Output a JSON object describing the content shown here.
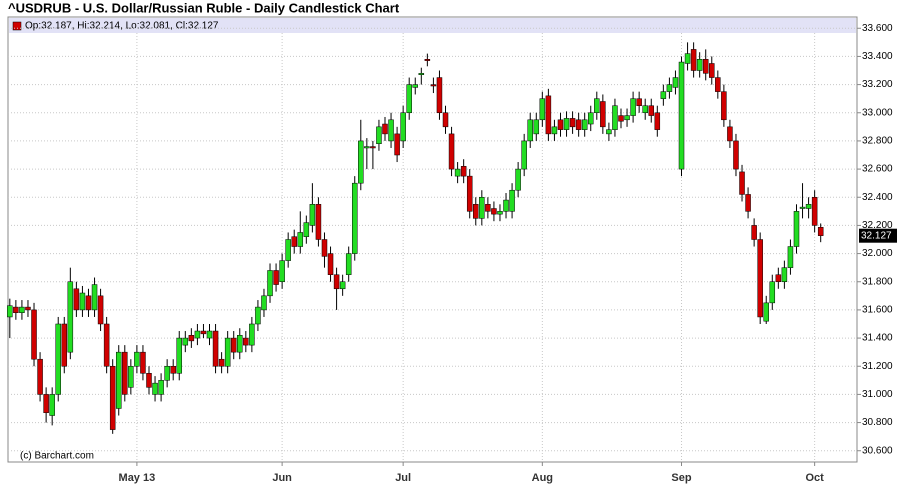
{
  "chart_data": {
    "type": "candlestick",
    "title": "^USDRUB - U.S. Dollar/Russian Ruble - Daily Candlestick Chart",
    "info": "Op:32.187, Hi:32.214, Lo:32.081, Cl:32.127",
    "credit": "(c) Barchart.com",
    "up_color": "#22dd22",
    "down_color": "#d00000",
    "grid": true,
    "xlim": [
      -0.3,
      140
    ],
    "xticks": [
      {
        "value": 21,
        "label": "May 13"
      },
      {
        "value": 45,
        "label": "Jun"
      },
      {
        "value": 65,
        "label": "Jul"
      },
      {
        "value": 88,
        "label": "Aug"
      },
      {
        "value": 111,
        "label": "Sep"
      },
      {
        "value": 133,
        "label": "Oct"
      }
    ],
    "ylim": [
      30.52,
      33.68
    ],
    "yticks": [
      {
        "value": 30.6,
        "label": "30.600"
      },
      {
        "value": 30.8,
        "label": "30.800"
      },
      {
        "value": 31.0,
        "label": "31.000"
      },
      {
        "value": 31.2,
        "label": "31.200"
      },
      {
        "value": 31.4,
        "label": "31.400"
      },
      {
        "value": 31.6,
        "label": "31.600"
      },
      {
        "value": 31.8,
        "label": "31.800"
      },
      {
        "value": 32.0,
        "label": "32.000"
      },
      {
        "value": 32.2,
        "label": "32.200"
      },
      {
        "value": 32.4,
        "label": "32.400"
      },
      {
        "value": 32.6,
        "label": "32.600"
      },
      {
        "value": 32.8,
        "label": "32.800"
      },
      {
        "value": 33.0,
        "label": "33.000"
      },
      {
        "value": 33.2,
        "label": "33.200"
      },
      {
        "value": 33.4,
        "label": "33.400"
      },
      {
        "value": 33.6,
        "label": "33.600"
      }
    ],
    "open": [
      31.55,
      31.62,
      31.58,
      31.62,
      31.6,
      31.25,
      31.0,
      30.85,
      31.0,
      31.5,
      31.3,
      31.75,
      31.6,
      31.7,
      31.6,
      31.7,
      31.5,
      31.2,
      30.9,
      31.3,
      31.05,
      31.2,
      31.3,
      31.15,
      31.0,
      31.0,
      31.1,
      31.2,
      31.15,
      31.35,
      31.42,
      31.4,
      31.45,
      31.4,
      31.45,
      31.25,
      31.2,
      31.4,
      31.3,
      31.4,
      31.35,
      31.5,
      31.6,
      31.7,
      31.88,
      31.8,
      31.95,
      32.12,
      32.05,
      32.12,
      32.2,
      32.35,
      32.1,
      32.0,
      31.85,
      31.75,
      31.85,
      32.0,
      32.5,
      32.75,
      32.76,
      32.78,
      32.92,
      32.8,
      32.85,
      32.8,
      33.0,
      33.18,
      33.27,
      33.38,
      33.2,
      33.25,
      33.0,
      32.85,
      32.55,
      32.62,
      32.55,
      32.35,
      32.25,
      32.35,
      32.32,
      32.28,
      32.3,
      32.3,
      32.45,
      32.6,
      32.8,
      32.85,
      32.95,
      33.12,
      32.85,
      32.95,
      32.88,
      32.96,
      32.95,
      32.88,
      32.92,
      33.0,
      33.08,
      32.85,
      32.88,
      32.98,
      32.95,
      32.98,
      33.1,
      33.0,
      33.05,
      33.0,
      33.1,
      33.15,
      33.18,
      32.6,
      33.35,
      33.45,
      33.3,
      33.38,
      33.35,
      33.25,
      33.15,
      32.9,
      32.8,
      32.58,
      32.42,
      32.2,
      32.1,
      31.52,
      31.65,
      31.85,
      31.8,
      31.9,
      32.05,
      32.32,
      32.32,
      32.4,
      32.187
    ],
    "high": [
      31.68,
      31.67,
      31.67,
      31.67,
      31.65,
      31.3,
      31.05,
      31.05,
      31.55,
      31.55,
      31.9,
      31.8,
      31.77,
      31.75,
      31.83,
      31.75,
      31.55,
      31.25,
      31.35,
      31.35,
      31.25,
      31.35,
      31.35,
      31.2,
      31.13,
      31.15,
      31.25,
      31.25,
      31.45,
      31.45,
      31.47,
      31.5,
      31.5,
      31.5,
      31.5,
      31.3,
      31.45,
      31.45,
      31.47,
      31.45,
      31.55,
      31.67,
      31.75,
      31.93,
      31.93,
      32.0,
      32.15,
      32.17,
      32.3,
      32.27,
      32.5,
      32.4,
      32.15,
      32.05,
      31.9,
      31.85,
      32.05,
      32.55,
      32.95,
      32.82,
      32.8,
      32.95,
      32.97,
      33.0,
      32.9,
      33.05,
      33.25,
      33.25,
      33.32,
      33.42,
      33.25,
      33.3,
      33.05,
      32.9,
      32.65,
      32.67,
      32.6,
      32.4,
      32.45,
      32.4,
      32.37,
      32.35,
      32.43,
      32.5,
      32.65,
      32.85,
      33.0,
      33.0,
      33.15,
      33.17,
      32.95,
      33.0,
      33.01,
      33.01,
      33.0,
      33.0,
      33.05,
      33.15,
      33.13,
      32.93,
      33.1,
      33.03,
      33.03,
      33.15,
      33.15,
      33.1,
      33.1,
      33.05,
      33.2,
      33.25,
      33.3,
      33.4,
      33.5,
      33.5,
      33.43,
      33.45,
      33.4,
      33.3,
      33.2,
      32.95,
      32.85,
      32.63,
      32.47,
      32.25,
      32.15,
      31.7,
      31.85,
      31.9,
      31.95,
      32.1,
      32.35,
      32.5,
      32.4,
      32.45,
      32.214
    ],
    "low": [
      31.4,
      31.53,
      31.53,
      31.55,
      31.2,
      30.95,
      30.8,
      30.78,
      30.95,
      31.15,
      31.25,
      31.55,
      31.55,
      31.55,
      31.55,
      31.45,
      31.15,
      30.72,
      30.85,
      30.95,
      31.0,
      31.15,
      31.1,
      31.0,
      30.95,
      30.95,
      31.05,
      31.1,
      31.1,
      31.3,
      31.33,
      31.35,
      31.4,
      31.35,
      31.15,
      31.15,
      31.15,
      31.25,
      31.25,
      31.3,
      31.3,
      31.45,
      31.55,
      31.65,
      31.73,
      31.75,
      31.9,
      32.0,
      32.0,
      32.07,
      32.15,
      32.05,
      31.9,
      31.8,
      31.6,
      31.7,
      31.8,
      31.95,
      32.45,
      32.6,
      32.6,
      32.73,
      32.8,
      32.75,
      32.65,
      32.75,
      32.95,
      33.13,
      33.2,
      33.33,
      33.14,
      32.95,
      32.85,
      32.55,
      32.5,
      32.5,
      32.25,
      32.2,
      32.2,
      32.25,
      32.23,
      32.23,
      32.25,
      32.25,
      32.4,
      32.55,
      32.75,
      32.8,
      32.9,
      32.8,
      32.8,
      32.83,
      32.83,
      32.85,
      32.83,
      32.83,
      32.87,
      32.95,
      32.85,
      32.8,
      32.83,
      32.89,
      32.9,
      32.93,
      33.0,
      32.95,
      32.93,
      32.83,
      33.05,
      33.1,
      33.13,
      32.55,
      33.3,
      33.25,
      33.25,
      33.23,
      33.2,
      33.1,
      32.9,
      32.75,
      32.55,
      32.37,
      32.25,
      32.05,
      31.5,
      31.5,
      31.6,
      31.75,
      31.75,
      31.85,
      32.0,
      32.25,
      32.25,
      32.15,
      32.081
    ],
    "close": [
      31.63,
      31.58,
      31.62,
      31.6,
      31.25,
      31.0,
      30.87,
      31.0,
      31.5,
      31.2,
      31.8,
      31.6,
      31.72,
      31.6,
      31.78,
      31.5,
      31.2,
      30.75,
      31.3,
      31.0,
      31.2,
      31.3,
      31.15,
      31.05,
      31.08,
      31.1,
      31.2,
      31.15,
      31.4,
      31.4,
      31.38,
      31.45,
      31.43,
      31.45,
      31.2,
      31.2,
      31.4,
      31.3,
      31.42,
      31.35,
      31.5,
      31.62,
      31.7,
      31.88,
      31.78,
      31.95,
      32.1,
      32.05,
      32.15,
      32.22,
      32.35,
      32.1,
      31.98,
      31.85,
      31.75,
      31.8,
      32.0,
      32.5,
      32.8,
      32.76,
      32.75,
      32.9,
      32.85,
      32.95,
      32.7,
      33.0,
      33.2,
      33.2,
      33.28,
      33.37,
      33.19,
      33.0,
      32.9,
      32.6,
      32.6,
      32.55,
      32.3,
      32.25,
      32.4,
      32.3,
      32.28,
      32.3,
      32.38,
      32.45,
      32.6,
      32.8,
      32.95,
      32.95,
      33.1,
      32.85,
      32.9,
      32.88,
      32.96,
      32.9,
      32.88,
      32.95,
      33.0,
      33.1,
      32.9,
      32.88,
      33.05,
      32.94,
      32.98,
      33.1,
      33.05,
      33.05,
      32.98,
      32.88,
      33.15,
      33.2,
      33.25,
      33.36,
      33.42,
      33.3,
      33.38,
      33.28,
      33.25,
      33.15,
      32.95,
      32.8,
      32.6,
      32.42,
      32.3,
      32.1,
      31.55,
      31.65,
      31.8,
      31.8,
      31.9,
      32.05,
      32.3,
      32.33,
      32.35,
      32.2,
      32.127
    ]
  }
}
